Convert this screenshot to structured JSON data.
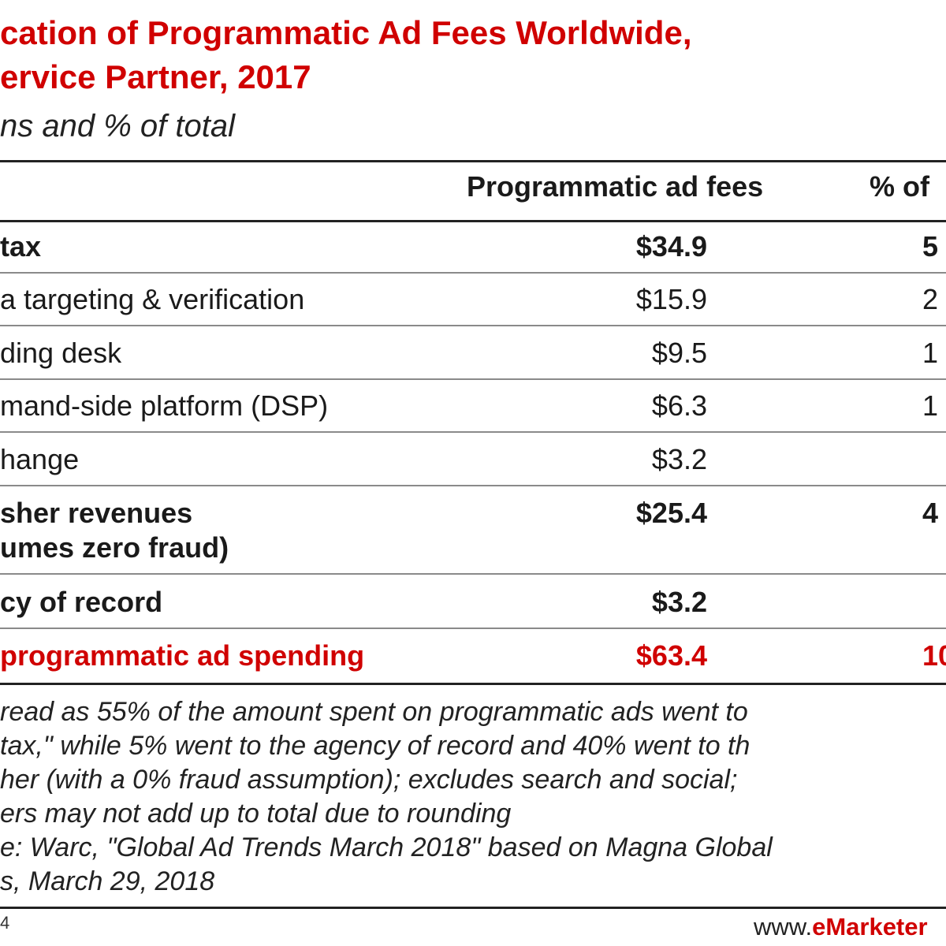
{
  "chart_data": {
    "type": "table",
    "title_lines": [
      "cation of Programmatic Ad Fees Worldwide,",
      "ervice Partner, 2017"
    ],
    "subtitle": "ns and % of total",
    "columns": [
      "Programmatic ad fees",
      "% of"
    ],
    "rows": [
      {
        "label": "tax",
        "value": "$34.9",
        "pct": "5",
        "style": "bold"
      },
      {
        "label": "a targeting & verification",
        "value": "$15.9",
        "pct": "2",
        "style": "normal"
      },
      {
        "label": "ding desk",
        "value": "$9.5",
        "pct": "1",
        "style": "normal"
      },
      {
        "label": "mand-side platform (DSP)",
        "value": "$6.3",
        "pct": "1",
        "style": "normal"
      },
      {
        "label": "hange",
        "value": "$3.2",
        "pct": "",
        "style": "normal"
      },
      {
        "label": "sher revenues",
        "label2": "umes zero fraud)",
        "value": "$25.4",
        "pct": "4",
        "style": "bold"
      },
      {
        "label": "cy of record",
        "value": "$3.2",
        "pct": "",
        "style": "bold"
      },
      {
        "label": " programmatic ad spending",
        "value": "$63.4",
        "pct": "10",
        "style": "red"
      }
    ],
    "note_lines": [
      "read as 55% of the amount spent on programmatic ads went to",
      "tax,\" while 5% went to the agency of record and 40% went to th",
      "her (with a 0% fraud assumption); excludes search and social;",
      "ers may not add up to total due to rounding",
      "e: Warc, \"Global Ad Trends March 2018\" based on Magna Global",
      "s, March 29, 2018"
    ],
    "footer_left": "4",
    "footer_right_prefix": "www.",
    "footer_right_brand": "eMarketer"
  },
  "colors": {
    "accent": "#d00000",
    "text": "#1a1a1a",
    "rule": "#8a8a8a"
  }
}
